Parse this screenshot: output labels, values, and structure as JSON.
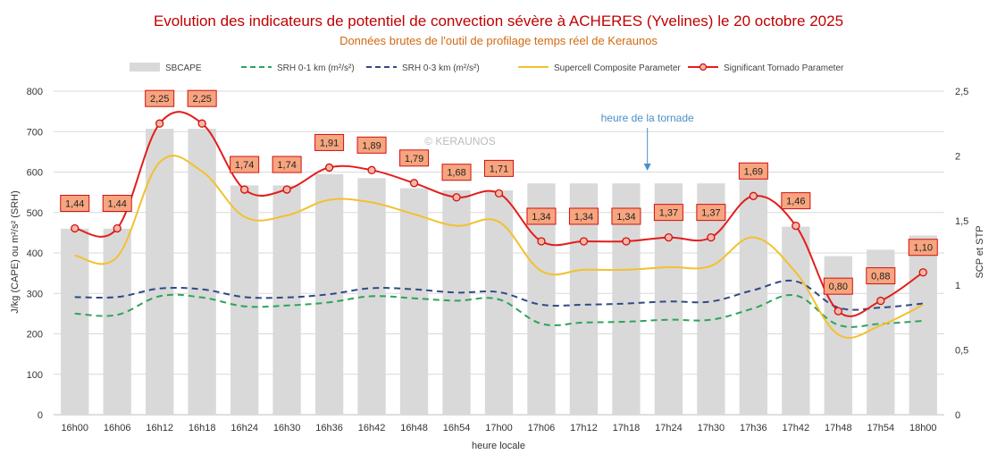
{
  "chart_data": {
    "type": "bar",
    "title": "Evolution des indicateurs de potentiel de convection sévère à ACHERES (Yvelines) le 20 octobre 2025",
    "subtitle": "Données brutes de l'outil de profilage temps réel de Keraunos",
    "xlabel": "heure locale",
    "ylabel_left": "J/kg (CAPE)  ou  m²/s² (SRH)",
    "ylabel_right": "SCP et STP",
    "watermark": "© KERAUNOS",
    "annotation": "heure de la tornade",
    "annotation_index": 13,
    "ylim_left": [
      0,
      800
    ],
    "ylim_right": [
      0,
      2.5
    ],
    "yticks_left": [
      "0",
      "100",
      "200",
      "300",
      "400",
      "500",
      "600",
      "700",
      "800"
    ],
    "yticks_right": [
      "0",
      "0,5",
      "1",
      "1,5",
      "2",
      "2,5"
    ],
    "grid": true,
    "legend_position": "top",
    "categories": [
      "16h00",
      "16h06",
      "16h12",
      "16h18",
      "16h24",
      "16h30",
      "16h36",
      "16h42",
      "16h48",
      "16h54",
      "17h00",
      "17h06",
      "17h12",
      "17h18",
      "17h24",
      "17h30",
      "17h36",
      "17h42",
      "17h48",
      "17h54",
      "18h00"
    ],
    "series": [
      {
        "name": "SBCAPE",
        "type": "bar",
        "axis": "left",
        "color": "#d9d9d9",
        "values": [
          460,
          460,
          707,
          707,
          567,
          567,
          595,
          585,
          560,
          555,
          555,
          572,
          572,
          572,
          572,
          572,
          623,
          465,
          392,
          408,
          443
        ]
      },
      {
        "name": "SRH 0-1 km (m²/s²)",
        "type": "line",
        "style": "dashed",
        "axis": "left",
        "color": "#2ea35a",
        "values": [
          250,
          247,
          293,
          290,
          268,
          270,
          278,
          293,
          288,
          282,
          285,
          225,
          228,
          230,
          235,
          235,
          263,
          295,
          222,
          225,
          232
        ]
      },
      {
        "name": "SRH 0-3 km (m²/s²)",
        "type": "line",
        "style": "dashed",
        "axis": "left",
        "color": "#2f4a86",
        "values": [
          291,
          291,
          312,
          310,
          291,
          290,
          298,
          313,
          310,
          302,
          303,
          272,
          272,
          275,
          280,
          280,
          308,
          330,
          265,
          265,
          275
        ]
      },
      {
        "name": "Supercell Composite Parameter",
        "type": "line",
        "axis": "right",
        "color": "#f2c12e",
        "values": [
          1.23,
          1.22,
          1.95,
          1.88,
          1.53,
          1.54,
          1.66,
          1.64,
          1.55,
          1.46,
          1.49,
          1.11,
          1.12,
          1.12,
          1.14,
          1.15,
          1.37,
          1.1,
          0.62,
          0.69,
          0.85
        ]
      },
      {
        "name": "Significant Tornado Parameter",
        "type": "line",
        "axis": "right",
        "color": "#e31d1d",
        "markers": true,
        "values": [
          1.44,
          1.44,
          2.25,
          2.25,
          1.74,
          1.74,
          1.91,
          1.89,
          1.79,
          1.68,
          1.71,
          1.34,
          1.34,
          1.34,
          1.37,
          1.37,
          1.69,
          1.46,
          0.8,
          0.88,
          1.1
        ],
        "labels": [
          "1,44",
          "1,44",
          "2,25",
          "2,25",
          "1,74",
          "1,74",
          "1,91",
          "1,89",
          "1,79",
          "1,68",
          "1,71",
          "1,34",
          "1,34",
          "1,34",
          "1,37",
          "1,37",
          "1,69",
          "1,46",
          "0,80",
          "0,88",
          "1,10"
        ]
      }
    ]
  }
}
